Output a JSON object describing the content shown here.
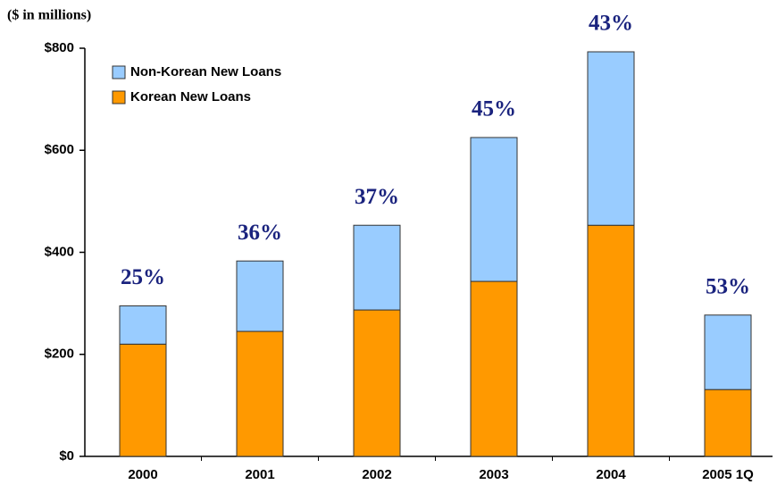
{
  "chart_data": {
    "type": "stacked_bar",
    "subtitle": "($ in millions)",
    "categories": [
      "2000",
      "2001",
      "2002",
      "2003",
      "2004",
      "2005 1Q"
    ],
    "series": [
      {
        "name": "Korean New Loans",
        "color": "#ff9900",
        "values": [
          220,
          245,
          287,
          343,
          453,
          131
        ]
      },
      {
        "name": "Non-Korean New Loans",
        "color": "#99ccff",
        "values": [
          75,
          138,
          166,
          282,
          340,
          146
        ]
      }
    ],
    "share_labels": [
      "25%",
      "36%",
      "37%",
      "45%",
      "43%",
      "53%"
    ],
    "ylim": [
      0,
      800
    ],
    "yticks": [
      {
        "value": 0,
        "label": "$0"
      },
      {
        "value": 200,
        "label": "$200"
      },
      {
        "value": 400,
        "label": "$400"
      },
      {
        "value": 600,
        "label": "$600"
      },
      {
        "value": 800,
        "label": "$800"
      }
    ],
    "legend": "upper-left",
    "grid": false
  }
}
